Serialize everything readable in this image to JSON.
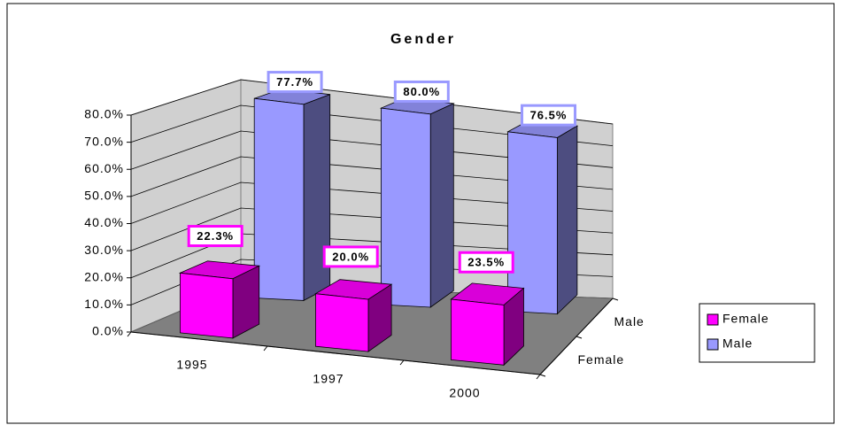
{
  "chart_data": {
    "type": "bar3d",
    "title": "Gender",
    "categories": [
      "1995",
      "1997",
      "2000"
    ],
    "series": [
      {
        "name": "Female",
        "color": "#ff00ff",
        "values": [
          22.3,
          20.0,
          23.5
        ],
        "value_labels": [
          "22.3%",
          "20.0%",
          "23.5%"
        ]
      },
      {
        "name": "Male",
        "color": "#9999ff",
        "values": [
          77.7,
          80.0,
          76.5
        ],
        "value_labels": [
          "77.7%",
          "80.0%",
          "76.5%"
        ]
      }
    ],
    "ylim": [
      0,
      80
    ],
    "yticks": [
      {
        "value": 0,
        "label": "0.0%"
      },
      {
        "value": 10,
        "label": "10.0%"
      },
      {
        "value": 20,
        "label": "20.0%"
      },
      {
        "value": 30,
        "label": "30.0%"
      },
      {
        "value": 40,
        "label": "40.0%"
      },
      {
        "value": 50,
        "label": "50.0%"
      },
      {
        "value": 60,
        "label": "60.0%"
      },
      {
        "value": 70,
        "label": "70.0%"
      },
      {
        "value": 80,
        "label": "80.0%"
      }
    ],
    "grid": true,
    "legend": "right"
  }
}
